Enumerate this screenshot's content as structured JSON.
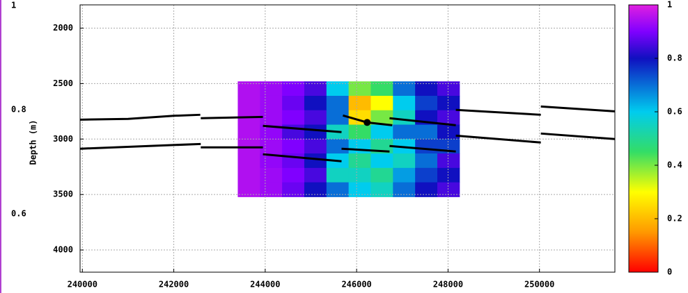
{
  "chart_data": {
    "type": "heatmap",
    "ylabel": "Depth (m)",
    "xlim": [
      239950,
      251650
    ],
    "xticks": [
      240000,
      242000,
      244000,
      246000,
      248000,
      250000
    ],
    "ylim": [
      1790,
      4200
    ],
    "y_inverted": true,
    "yticks": [
      2000,
      2500,
      3000,
      3500,
      4000
    ],
    "grid": true,
    "heatmap": {
      "x": [
        243400,
        243885,
        244370,
        244855,
        245340,
        245825,
        246310,
        246795,
        247280,
        247765,
        248250
      ],
      "y": [
        2480,
        2610,
        2740,
        2870,
        3000,
        3130,
        3260,
        3390,
        3520
      ],
      "z": [
        [
          0.95,
          0.93,
          0.9,
          0.85,
          0.6,
          0.4,
          0.45,
          0.7,
          0.8,
          0.85
        ],
        [
          0.95,
          0.93,
          0.88,
          0.8,
          0.7,
          0.2,
          0.3,
          0.6,
          0.75,
          0.8
        ],
        [
          0.95,
          0.93,
          0.9,
          0.85,
          0.7,
          0.25,
          0.4,
          0.55,
          0.8,
          0.85
        ],
        [
          0.95,
          0.92,
          0.85,
          0.8,
          0.55,
          0.45,
          0.6,
          0.7,
          0.7,
          0.8
        ],
        [
          0.95,
          0.93,
          0.9,
          0.85,
          0.7,
          0.6,
          0.5,
          0.6,
          0.75,
          0.75
        ],
        [
          0.95,
          0.92,
          0.88,
          0.8,
          0.6,
          0.5,
          0.6,
          0.55,
          0.7,
          0.85
        ],
        [
          0.95,
          0.93,
          0.9,
          0.85,
          0.55,
          0.55,
          0.5,
          0.65,
          0.75,
          0.8
        ],
        [
          0.95,
          0.93,
          0.88,
          0.8,
          0.7,
          0.6,
          0.55,
          0.7,
          0.8,
          0.85
        ]
      ]
    },
    "colormap": [
      [
        0,
        "#ff0000"
      ],
      [
        0.15,
        "#ff9900"
      ],
      [
        0.3,
        "#ffff00"
      ],
      [
        0.45,
        "#33dd66"
      ],
      [
        0.6,
        "#00ccee"
      ],
      [
        0.8,
        "#1010c0"
      ],
      [
        0.9,
        "#8000ff"
      ],
      [
        1,
        "#e020e0"
      ]
    ],
    "clim": [
      0,
      1
    ],
    "cticks": [
      0,
      0.2,
      0.4,
      0.6,
      0.8,
      1
    ],
    "line_color": "#000000",
    "lines": [
      {
        "x": [
          239950,
          241000,
          242000,
          242580
        ],
        "y": [
          2825,
          2818,
          2790,
          2781
        ]
      },
      {
        "x": [
          242590,
          243950
        ],
        "y": [
          2812,
          2800
        ]
      },
      {
        "x": [
          243950,
          245670
        ],
        "y": [
          2881,
          2937
        ]
      },
      {
        "x": [
          245700,
          246230,
          246780
        ],
        "y": [
          2787,
          2850,
          2875
        ]
      },
      {
        "x": [
          246720,
          248170
        ],
        "y": [
          2812,
          2875
        ]
      },
      {
        "x": [
          248170,
          250030
        ],
        "y": [
          2737,
          2781
        ]
      },
      {
        "x": [
          250030,
          251650
        ],
        "y": [
          2706,
          2750
        ]
      },
      {
        "x": [
          239950,
          242590
        ],
        "y": [
          3087,
          3044
        ]
      },
      {
        "x": [
          242590,
          243950
        ],
        "y": [
          3075,
          3075
        ]
      },
      {
        "x": [
          243950,
          245670
        ],
        "y": [
          3137,
          3200
        ]
      },
      {
        "x": [
          245670,
          246720
        ],
        "y": [
          3087,
          3112
        ]
      },
      {
        "x": [
          246720,
          248170
        ],
        "y": [
          3062,
          3112
        ]
      },
      {
        "x": [
          248170,
          250030
        ],
        "y": [
          2969,
          3031
        ]
      },
      {
        "x": [
          250030,
          251650
        ],
        "y": [
          2950,
          3000
        ]
      }
    ],
    "points": {
      "x": [
        246230
      ],
      "y": [
        2850
      ]
    },
    "left_axis": {
      "lim": [
        0.448,
        1.011
      ],
      "ticks": [
        1,
        0.8,
        0.6
      ],
      "color": "#b040d0"
    }
  }
}
